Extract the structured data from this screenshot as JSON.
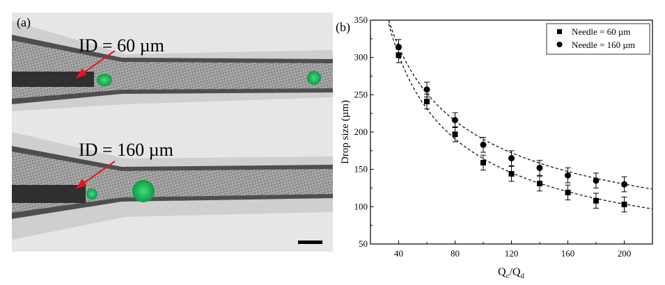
{
  "panel_a": {
    "label": "(a)",
    "top_annotation": "ID = 60 µm",
    "bottom_annotation": "ID = 160 µm",
    "drop_color": "#1fbf5a",
    "arrow_color": "#e8141c"
  },
  "chart_data": {
    "type": "scatter",
    "panel_label": "(b)",
    "xlabel_main": "Q",
    "xlabel_sub1": "c",
    "xlabel_mid": "/Q",
    "xlabel_sub2": "d",
    "ylabel": "Drop size (µm)",
    "xlim": [
      20,
      220
    ],
    "ylim": [
      50,
      350
    ],
    "xticks": [
      40,
      80,
      120,
      160,
      200
    ],
    "yticks": [
      50,
      100,
      150,
      200,
      250,
      300,
      350
    ],
    "legend_position": "top-right",
    "x": [
      40,
      60,
      80,
      100,
      120,
      140,
      160,
      180,
      200
    ],
    "series": [
      {
        "name": "Needle = 60 µm",
        "marker": "square",
        "values": [
          303,
          241,
          197,
          159,
          144,
          131,
          119,
          108,
          103
        ],
        "error": [
          10,
          10,
          10,
          10,
          10,
          10,
          10,
          10,
          10
        ],
        "fit": {
          "type": "power",
          "a": 3564,
          "b": -0.668
        }
      },
      {
        "name": "Needle = 160 µm",
        "marker": "circle",
        "values": [
          314,
          257,
          216,
          183,
          165,
          152,
          142,
          135,
          130
        ],
        "error": [
          10,
          10,
          10,
          10,
          10,
          10,
          10,
          10,
          10
        ],
        "fit": {
          "type": "power",
          "a": 2375,
          "b": -0.548
        }
      }
    ]
  }
}
